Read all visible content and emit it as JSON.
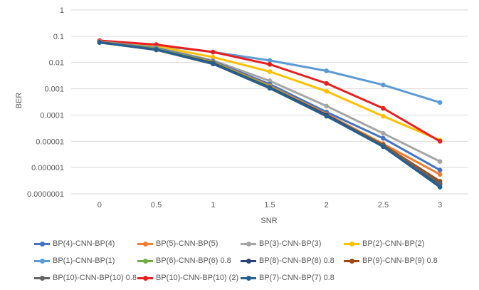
{
  "chart_data": {
    "type": "line",
    "title": "",
    "xlabel": "SNR",
    "ylabel": "BER",
    "y_scale": "log",
    "ylim": [
      1e-07,
      1
    ],
    "y_ticks": [
      "0.0000001",
      "0.000001",
      "0.00001",
      "0.0001",
      "0.001",
      "0.01",
      "0.1",
      "1"
    ],
    "x_categories": [
      "0",
      "0.5",
      "1",
      "1.5",
      "2",
      "2.5",
      "3"
    ],
    "grid": "horizontal",
    "legend_position": "bottom",
    "series": [
      {
        "name": "BP(4)-CNN-BP(4)",
        "color": "#4472C4",
        "values": [
          0.06,
          0.035,
          0.011,
          0.0015,
          0.00013,
          1.3e-05,
          8e-07
        ]
      },
      {
        "name": "BP(5)-CNN-BP(5)",
        "color": "#ED7D31",
        "values": [
          0.06,
          0.033,
          0.0105,
          0.0013,
          0.00011,
          8e-06,
          5.5e-07
        ]
      },
      {
        "name": "BP(3)-CNN-BP(3)",
        "color": "#A5A5A5",
        "values": [
          0.062,
          0.037,
          0.012,
          0.002,
          0.00022,
          2e-05,
          1.7e-06
        ]
      },
      {
        "name": "BP(2)-CNN-BP(2)",
        "color": "#FFC000",
        "values": [
          0.065,
          0.042,
          0.016,
          0.0045,
          0.0008,
          9e-05,
          1.1e-05
        ]
      },
      {
        "name": "BP(1)-CNN-BP(1)",
        "color": "#5B9BD5",
        "values": [
          0.065,
          0.045,
          0.025,
          0.012,
          0.0048,
          0.0014,
          0.0003
        ]
      },
      {
        "name": "BP(6)-CNN-BP(6) 0.8",
        "color": "#70AD47",
        "values": [
          0.06,
          0.033,
          0.0102,
          0.0012,
          0.0001,
          7.2e-06,
          2.5e-07
        ]
      },
      {
        "name": "BP(8)-CNN-BP(8) 0.8",
        "color": "#264478",
        "values": [
          0.058,
          0.031,
          0.0093,
          0.0011,
          0.0001,
          6.8e-06,
          2.3e-07
        ]
      },
      {
        "name": "BP(9)-CNN-BP(9) 0.8",
        "color": "#9E480E",
        "values": [
          0.059,
          0.031,
          0.0095,
          0.0011,
          9.5e-05,
          7.2e-06,
          3e-07
        ]
      },
      {
        "name": "BP(10)-CNN-BP(10) 0.8",
        "color": "#636363",
        "values": [
          0.058,
          0.03,
          0.0088,
          0.00105,
          9e-05,
          6.8e-06,
          2.5e-07
        ]
      },
      {
        "name": "BP(10)-CNN-BP(10) (2)",
        "color": "#E81F1F",
        "values": [
          0.068,
          0.048,
          0.025,
          0.0085,
          0.0016,
          0.00018,
          1e-05
        ]
      },
      {
        "name": "BP(7)-CNN-BP(7) 0.8",
        "color": "#255E91",
        "values": [
          0.058,
          0.031,
          0.009,
          0.00105,
          9.2e-05,
          6.2e-06,
          1.8e-07
        ]
      }
    ],
    "draw_order": [
      4,
      3,
      9,
      2,
      0,
      1,
      5,
      7,
      6,
      8,
      10
    ]
  }
}
